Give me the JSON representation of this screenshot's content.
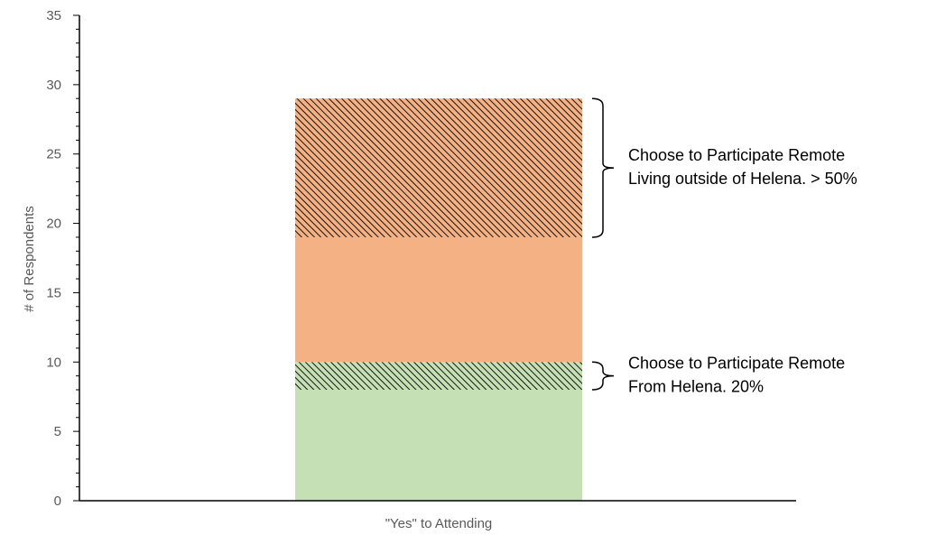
{
  "chart_data": {
    "type": "bar",
    "stacked": true,
    "categories": [
      "\"Yes\" to Attending"
    ],
    "ylabel": "# of Respondents",
    "ylim": [
      0,
      35
    ],
    "ytick_step": 5,
    "grid": false,
    "segments": [
      {
        "start": 0,
        "end": 8,
        "color": "#c5e0b4",
        "hatched": false
      },
      {
        "start": 8,
        "end": 10,
        "color": "#c5e0b4",
        "hatched": true
      },
      {
        "start": 10,
        "end": 19,
        "color": "#f4b183",
        "hatched": false
      },
      {
        "start": 19,
        "end": 29,
        "color": "#f4b183",
        "hatched": true
      }
    ],
    "annotations": [
      {
        "from": 19,
        "to": 29,
        "lines": [
          "Choose to Participate Remote",
          "Living outside of Helena. > 50%"
        ]
      },
      {
        "from": 8,
        "to": 10,
        "lines": [
          "Choose to Participate Remote",
          "From Helena. 20%"
        ]
      }
    ]
  }
}
